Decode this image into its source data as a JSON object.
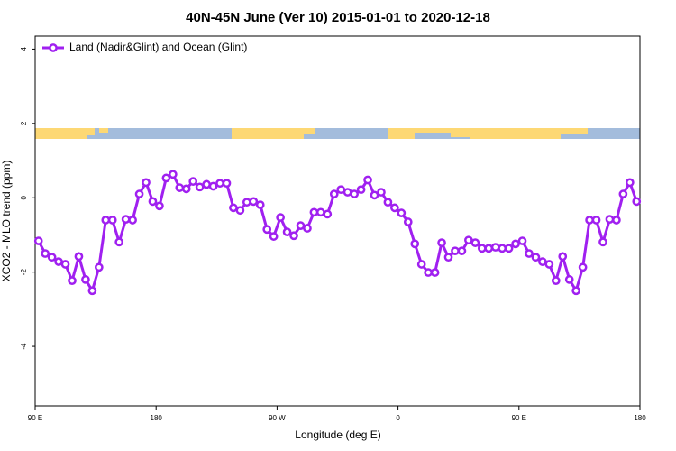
{
  "chart_data": {
    "type": "line",
    "title": "40N-45N June (Ver 10)   2015-01-01 to 2020-12-18",
    "x_label": "Longitude (deg E)",
    "y_label": "XCO2 - MLO trend (ppm)",
    "xlim": [
      90,
      540
    ],
    "ylim": [
      -5.6,
      4.35
    ],
    "xticks": [
      {
        "value": 90,
        "label": "90 E"
      },
      180,
      {
        "value": 270,
        "label": "90 W"
      },
      {
        "value": 360,
        "label": "0"
      },
      {
        "value": 450,
        "label": "90 E"
      },
      {
        "value": 540,
        "label": "180"
      }
    ],
    "yticks": [
      -4,
      -2,
      0,
      2,
      4
    ],
    "legend": "top-left",
    "x": [
      92.5,
      97.5,
      102.5,
      107.5,
      112.5,
      117.5,
      122.5,
      127.5,
      132.5,
      137.5,
      142.5,
      147.5,
      152.5,
      157.5,
      162.5,
      167.5,
      172.5,
      177.5,
      182.5,
      187.5,
      192.5,
      197.5,
      202.5,
      207.5,
      212.5,
      217.5,
      222.5,
      227.5,
      232.5,
      237.5,
      242.5,
      247.5,
      252.5,
      257.5,
      262.5,
      267.5,
      272.5,
      277.5,
      282.5,
      287.5,
      292.5,
      297.5,
      302.5,
      307.5,
      312.5,
      317.5,
      322.5,
      327.5,
      332.5,
      337.5,
      342.5,
      347.5,
      352.5,
      357.5,
      362.5,
      367.5,
      372.5,
      377.5,
      382.5,
      387.5,
      392.5,
      397.5,
      402.5,
      407.5,
      412.5,
      417.5,
      422.5,
      427.5,
      432.5,
      437.5,
      442.5,
      447.5,
      452.5,
      457.5,
      462.5,
      467.5,
      472.5,
      477.5,
      482.5,
      487.5,
      492.5,
      497.5,
      502.5,
      507.5,
      512.5,
      517.5,
      522.5,
      527.5,
      532.5,
      537.5
    ],
    "series": [
      {
        "name": "Land (Nadir&Glint) and Ocean (Glint)",
        "color": "#a020f0",
        "values": [
          -1.16,
          -1.5,
          -1.6,
          -1.72,
          -1.79,
          -2.23,
          -1.58,
          -2.2,
          -2.5,
          -1.87,
          -0.6,
          -0.6,
          -1.19,
          -0.58,
          -0.6,
          0.1,
          0.41,
          -0.1,
          -0.22,
          0.53,
          0.63,
          0.27,
          0.24,
          0.44,
          0.29,
          0.36,
          0.31,
          0.39,
          0.39,
          -0.27,
          -0.34,
          -0.12,
          -0.1,
          -0.19,
          -0.85,
          -1.04,
          -0.53,
          -0.92,
          -1.02,
          -0.75,
          -0.82,
          -0.39,
          -0.39,
          -0.44,
          0.1,
          0.22,
          0.15,
          0.1,
          0.22,
          0.48,
          0.07,
          0.15,
          -0.12,
          -0.27,
          -0.41,
          -0.65,
          -1.24,
          -1.79,
          -2.01,
          -2.01,
          -1.21,
          -1.6,
          -1.43,
          -1.43,
          -1.14,
          -1.21,
          -1.36,
          -1.36,
          -1.33,
          -1.36,
          -1.36,
          -1.24,
          -1.16,
          -1.5,
          -1.6,
          -1.72,
          -1.79,
          -2.23,
          -1.58,
          -2.2,
          -2.5,
          -1.87,
          -0.6,
          -0.6,
          -1.19,
          -0.58,
          -0.6,
          0.1,
          0.41,
          -0.1
        ]
      }
    ]
  }
}
